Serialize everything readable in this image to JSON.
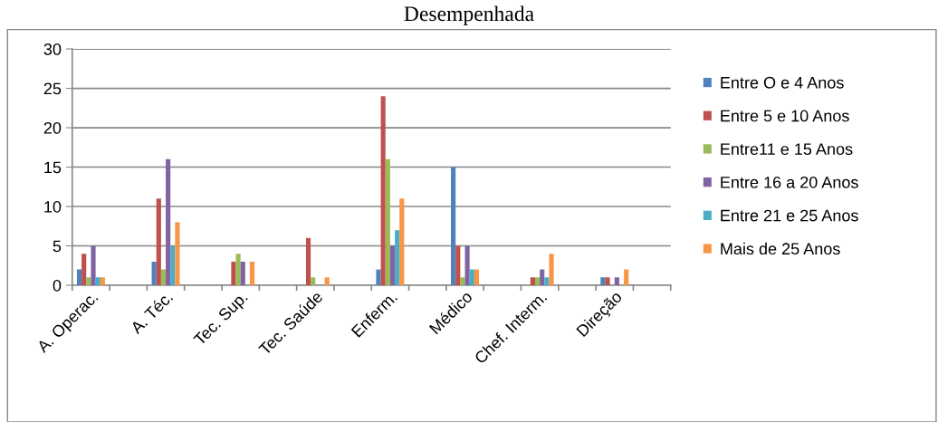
{
  "chart_data": {
    "type": "bar",
    "title": "Desempenhada",
    "categories": [
      "A. Operac.",
      null,
      "A. Téc.",
      null,
      "Tec. Sup.",
      null,
      "Tec. Saúde",
      null,
      "Enferm.",
      null,
      "Médico",
      null,
      "Chef. Interm.",
      null,
      "Direção",
      null
    ],
    "series": [
      {
        "name": "Entre O e 4 Anos",
        "color": "#4f81bd",
        "values": [
          2,
          null,
          3,
          null,
          0,
          null,
          0,
          null,
          2,
          null,
          15,
          null,
          0,
          null,
          1,
          null
        ]
      },
      {
        "name": "Entre 5 e 10 Anos",
        "color": "#c0504d",
        "values": [
          4,
          null,
          11,
          null,
          3,
          null,
          6,
          null,
          24,
          null,
          5,
          null,
          1,
          null,
          1,
          null
        ]
      },
      {
        "name": "Entre11 e 15 Anos",
        "color": "#9bbb59",
        "values": [
          1,
          null,
          2,
          null,
          4,
          null,
          1,
          null,
          16,
          null,
          1,
          null,
          1,
          null,
          0,
          null
        ]
      },
      {
        "name": "Entre 16 a 20 Anos",
        "color": "#8064a2",
        "values": [
          5,
          null,
          16,
          null,
          3,
          null,
          0,
          null,
          5,
          null,
          5,
          null,
          2,
          null,
          1,
          null
        ]
      },
      {
        "name": "Entre 21 e 25 Anos",
        "color": "#4bacc6",
        "values": [
          1,
          null,
          5,
          null,
          0,
          null,
          0,
          null,
          7,
          null,
          2,
          null,
          1,
          null,
          0,
          null
        ]
      },
      {
        "name": "Mais de 25 Anos",
        "color": "#f79646",
        "values": [
          1,
          null,
          8,
          null,
          3,
          null,
          1,
          null,
          11,
          null,
          2,
          null,
          4,
          null,
          2,
          null
        ]
      }
    ],
    "ylim": [
      0,
      30
    ],
    "yticks": [
      0,
      5,
      10,
      15,
      20,
      25,
      30
    ],
    "grid": "y",
    "legend": "right"
  }
}
